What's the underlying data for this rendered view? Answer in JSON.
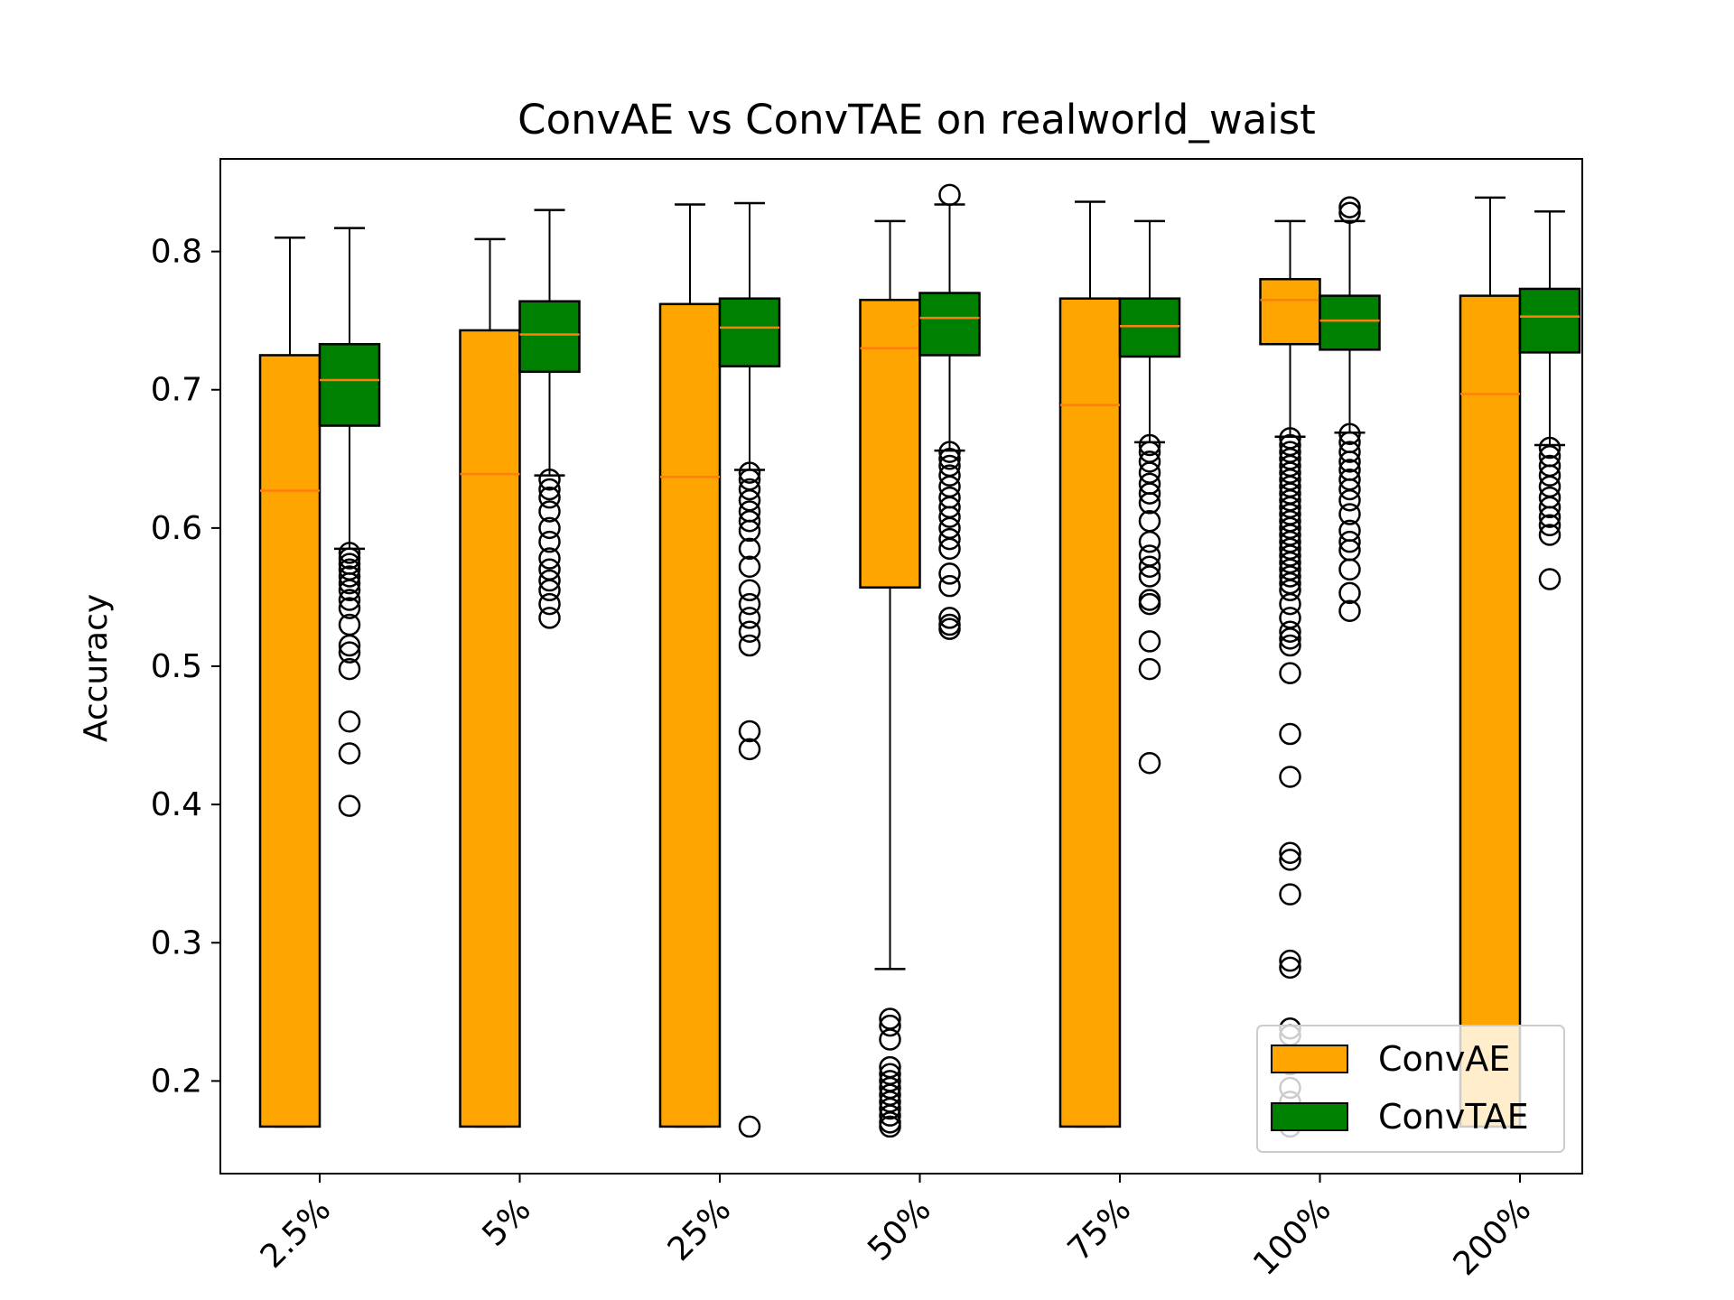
{
  "chart_data": {
    "type": "boxplot",
    "title": "ConvAE vs ConvTAE on realworld_waist",
    "ylabel": "Accuracy",
    "xlabel": "",
    "ylim": [
      0.133,
      0.867
    ],
    "yticks": [
      "0.2",
      "0.3",
      "0.4",
      "0.5",
      "0.6",
      "0.7",
      "0.8"
    ],
    "categories": [
      "2.5%",
      "5%",
      "25%",
      "50%",
      "75%",
      "100%",
      "200%"
    ],
    "legend": {
      "position": "lower right",
      "entries": [
        "ConvAE",
        "ConvTAE"
      ]
    },
    "grid": false,
    "colors": {
      "ConvAE": "#ffa500",
      "ConvTAE": "#008000",
      "median": "#ff7f0e",
      "edge": "#000000"
    },
    "series": [
      {
        "name": "ConvAE",
        "boxes": [
          {
            "min": 0.167,
            "q1": 0.167,
            "median": 0.627,
            "q3": 0.725,
            "max": 0.81,
            "outliers": []
          },
          {
            "min": 0.167,
            "q1": 0.167,
            "median": 0.639,
            "q3": 0.743,
            "max": 0.809,
            "outliers": []
          },
          {
            "min": 0.167,
            "q1": 0.167,
            "median": 0.637,
            "q3": 0.762,
            "max": 0.834,
            "outliers": []
          },
          {
            "min": 0.281,
            "q1": 0.557,
            "median": 0.73,
            "q3": 0.765,
            "max": 0.822,
            "outliers": [
              0.245,
              0.24,
              0.23,
              0.21,
              0.205,
              0.2,
              0.195,
              0.19,
              0.185,
              0.18,
              0.175,
              0.17,
              0.167
            ]
          },
          {
            "min": 0.167,
            "q1": 0.167,
            "median": 0.689,
            "q3": 0.766,
            "max": 0.836,
            "outliers": []
          },
          {
            "min": 0.666,
            "q1": 0.733,
            "median": 0.765,
            "q3": 0.78,
            "max": 0.822,
            "outliers": [
              0.665,
              0.66,
              0.655,
              0.65,
              0.645,
              0.64,
              0.635,
              0.63,
              0.625,
              0.62,
              0.615,
              0.61,
              0.605,
              0.6,
              0.595,
              0.59,
              0.585,
              0.58,
              0.575,
              0.57,
              0.565,
              0.56,
              0.555,
              0.545,
              0.535,
              0.525,
              0.52,
              0.515,
              0.495,
              0.451,
              0.42,
              0.365,
              0.36,
              0.335,
              0.287,
              0.282,
              0.238,
              0.233,
              0.212,
              0.195,
              0.185,
              0.167
            ]
          },
          {
            "min": 0.167,
            "q1": 0.167,
            "median": 0.697,
            "q3": 0.768,
            "max": 0.839,
            "outliers": []
          }
        ]
      },
      {
        "name": "ConvTAE",
        "boxes": [
          {
            "min": 0.585,
            "q1": 0.674,
            "median": 0.707,
            "q3": 0.733,
            "max": 0.817,
            "outliers": [
              0.582,
              0.578,
              0.574,
              0.57,
              0.565,
              0.56,
              0.555,
              0.548,
              0.542,
              0.53,
              0.515,
              0.51,
              0.498,
              0.46,
              0.437,
              0.399
            ]
          },
          {
            "min": 0.638,
            "q1": 0.713,
            "median": 0.74,
            "q3": 0.764,
            "max": 0.83,
            "outliers": [
              0.635,
              0.628,
              0.622,
              0.612,
              0.6,
              0.59,
              0.578,
              0.57,
              0.562,
              0.555,
              0.545,
              0.535
            ]
          },
          {
            "min": 0.642,
            "q1": 0.717,
            "median": 0.745,
            "q3": 0.766,
            "max": 0.835,
            "outliers": [
              0.64,
              0.635,
              0.628,
              0.62,
              0.612,
              0.605,
              0.598,
              0.585,
              0.572,
              0.555,
              0.545,
              0.535,
              0.525,
              0.515,
              0.453,
              0.44,
              0.167
            ]
          },
          {
            "min": 0.656,
            "q1": 0.725,
            "median": 0.752,
            "q3": 0.77,
            "max": 0.834,
            "outliers": [
              0.841,
              0.655,
              0.65,
              0.645,
              0.638,
              0.63,
              0.622,
              0.615,
              0.608,
              0.6,
              0.592,
              0.585,
              0.567,
              0.558,
              0.535,
              0.53,
              0.527
            ]
          },
          {
            "min": 0.662,
            "q1": 0.724,
            "median": 0.746,
            "q3": 0.766,
            "max": 0.822,
            "outliers": [
              0.66,
              0.655,
              0.648,
              0.64,
              0.632,
              0.625,
              0.618,
              0.605,
              0.59,
              0.58,
              0.572,
              0.565,
              0.548,
              0.545,
              0.518,
              0.498,
              0.43
            ]
          },
          {
            "min": 0.669,
            "q1": 0.729,
            "median": 0.75,
            "q3": 0.768,
            "max": 0.822,
            "outliers": [
              0.832,
              0.828,
              0.668,
              0.662,
              0.655,
              0.648,
              0.642,
              0.635,
              0.628,
              0.62,
              0.61,
              0.598,
              0.59,
              0.584,
              0.57,
              0.553,
              0.54
            ]
          },
          {
            "min": 0.66,
            "q1": 0.727,
            "median": 0.753,
            "q3": 0.773,
            "max": 0.829,
            "outliers": [
              0.658,
              0.652,
              0.645,
              0.638,
              0.63,
              0.622,
              0.615,
              0.608,
              0.602,
              0.595,
              0.563
            ]
          }
        ]
      }
    ]
  }
}
